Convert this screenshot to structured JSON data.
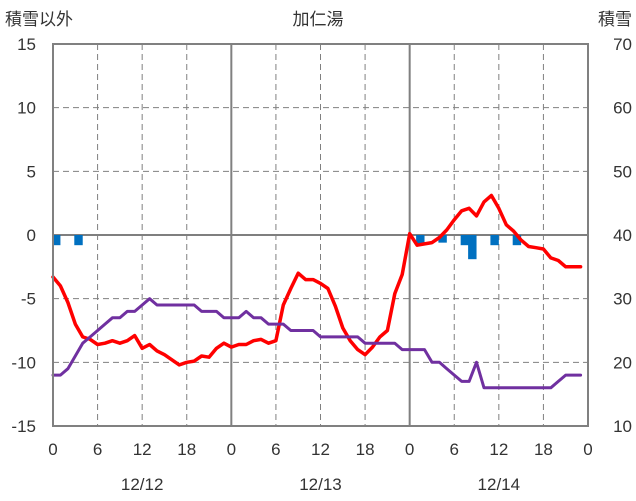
{
  "chart_data": {
    "type": "line",
    "title": "加仁湯",
    "left_axis_label": "積雪以外",
    "right_axis_label": "積雪",
    "left_ylim": [
      -15,
      15
    ],
    "left_yticks": [
      "15",
      "10",
      "5",
      "0",
      "-5",
      "-10",
      "-15"
    ],
    "right_ylim": [
      10,
      70
    ],
    "right_yticks": [
      "70",
      "60",
      "50",
      "40",
      "30",
      "20",
      "10"
    ],
    "xlim": [
      0,
      72
    ],
    "x_tick_labels": [
      "0",
      "6",
      "12",
      "18",
      "0",
      "6",
      "12",
      "18",
      "0",
      "6",
      "12",
      "18",
      "0"
    ],
    "date_labels": [
      "12/12",
      "12/13",
      "12/14"
    ],
    "grid": true,
    "colors": {
      "temperature": "#ff0000",
      "snow_depth": "#7030a0",
      "precipitation": "#0070c0",
      "zero_line": "#7f7f7f"
    },
    "series": [
      {
        "axis": "left",
        "style": "line",
        "x": [
          0,
          1,
          2,
          3,
          4,
          5,
          6,
          7,
          8,
          9,
          10,
          11,
          12,
          13,
          14,
          15,
          16,
          17,
          18,
          19,
          20,
          21,
          22,
          23,
          24,
          25,
          26,
          27,
          28,
          29,
          30,
          31,
          32,
          33,
          34,
          35,
          36,
          37,
          38,
          39,
          40,
          41,
          42,
          43,
          44,
          45,
          46,
          47,
          48,
          49,
          50,
          51,
          52,
          53,
          54,
          55,
          56,
          57,
          58,
          59,
          60,
          61,
          62,
          63,
          64,
          65,
          66,
          67,
          68,
          69,
          70,
          71
        ],
        "values": [
          -3.3,
          -4.0,
          -5.3,
          -7.0,
          -8.0,
          -8.2,
          -8.6,
          -8.5,
          -8.3,
          -8.5,
          -8.3,
          -7.9,
          -8.9,
          -8.6,
          -9.1,
          -9.4,
          -9.8,
          -10.2,
          -10.0,
          -9.9,
          -9.5,
          -9.6,
          -8.9,
          -8.5,
          -8.8,
          -8.6,
          -8.6,
          -8.3,
          -8.2,
          -8.5,
          -8.3,
          -5.5,
          -4.2,
          -3.0,
          -3.5,
          -3.5,
          -3.8,
          -4.2,
          -5.6,
          -7.3,
          -8.3,
          -9.0,
          -9.4,
          -8.8,
          -8.0,
          -7.5,
          -4.6,
          -3.1,
          0.1,
          -0.8,
          -0.7,
          -0.6,
          -0.2,
          0.4,
          1.2,
          1.9,
          2.1,
          1.5,
          2.6,
          3.1,
          2.1,
          0.8,
          0.3,
          -0.4,
          -0.9,
          -1.0,
          -1.1,
          -1.8,
          -2.0,
          -2.5,
          -2.5,
          -2.5
        ]
      },
      {
        "axis": "right",
        "style": "line",
        "x": [
          0,
          1,
          2,
          3,
          4,
          5,
          6,
          7,
          8,
          9,
          10,
          11,
          12,
          13,
          14,
          15,
          16,
          17,
          18,
          19,
          20,
          21,
          22,
          23,
          24,
          25,
          26,
          27,
          28,
          29,
          30,
          31,
          32,
          33,
          34,
          35,
          36,
          37,
          38,
          39,
          40,
          41,
          42,
          43,
          44,
          45,
          46,
          47,
          48,
          49,
          50,
          51,
          52,
          53,
          54,
          55,
          56,
          57,
          58,
          59,
          60,
          61,
          62,
          63,
          64,
          65,
          66,
          67,
          68,
          69,
          70,
          71
        ],
        "values": [
          18,
          18,
          19,
          21,
          23,
          24,
          25,
          26,
          27,
          27,
          28,
          28,
          29,
          30,
          29,
          29,
          29,
          29,
          29,
          29,
          28,
          28,
          28,
          27,
          27,
          27,
          28,
          27,
          27,
          26,
          26,
          26,
          25,
          25,
          25,
          25,
          24,
          24,
          24,
          24,
          24,
          24,
          23,
          23,
          23,
          23,
          23,
          22,
          22,
          22,
          22,
          20,
          20,
          19,
          18,
          17,
          17,
          20,
          16,
          16,
          16,
          16,
          16,
          16,
          16,
          16,
          16,
          16,
          17,
          18,
          18,
          18
        ]
      },
      {
        "axis": "left",
        "style": "bar",
        "x": [
          0,
          3,
          49,
          52,
          55,
          56,
          59,
          62
        ],
        "values": [
          -0.8,
          -0.8,
          -0.8,
          -0.6,
          -0.8,
          -1.9,
          -0.8,
          -0.8
        ]
      }
    ]
  }
}
